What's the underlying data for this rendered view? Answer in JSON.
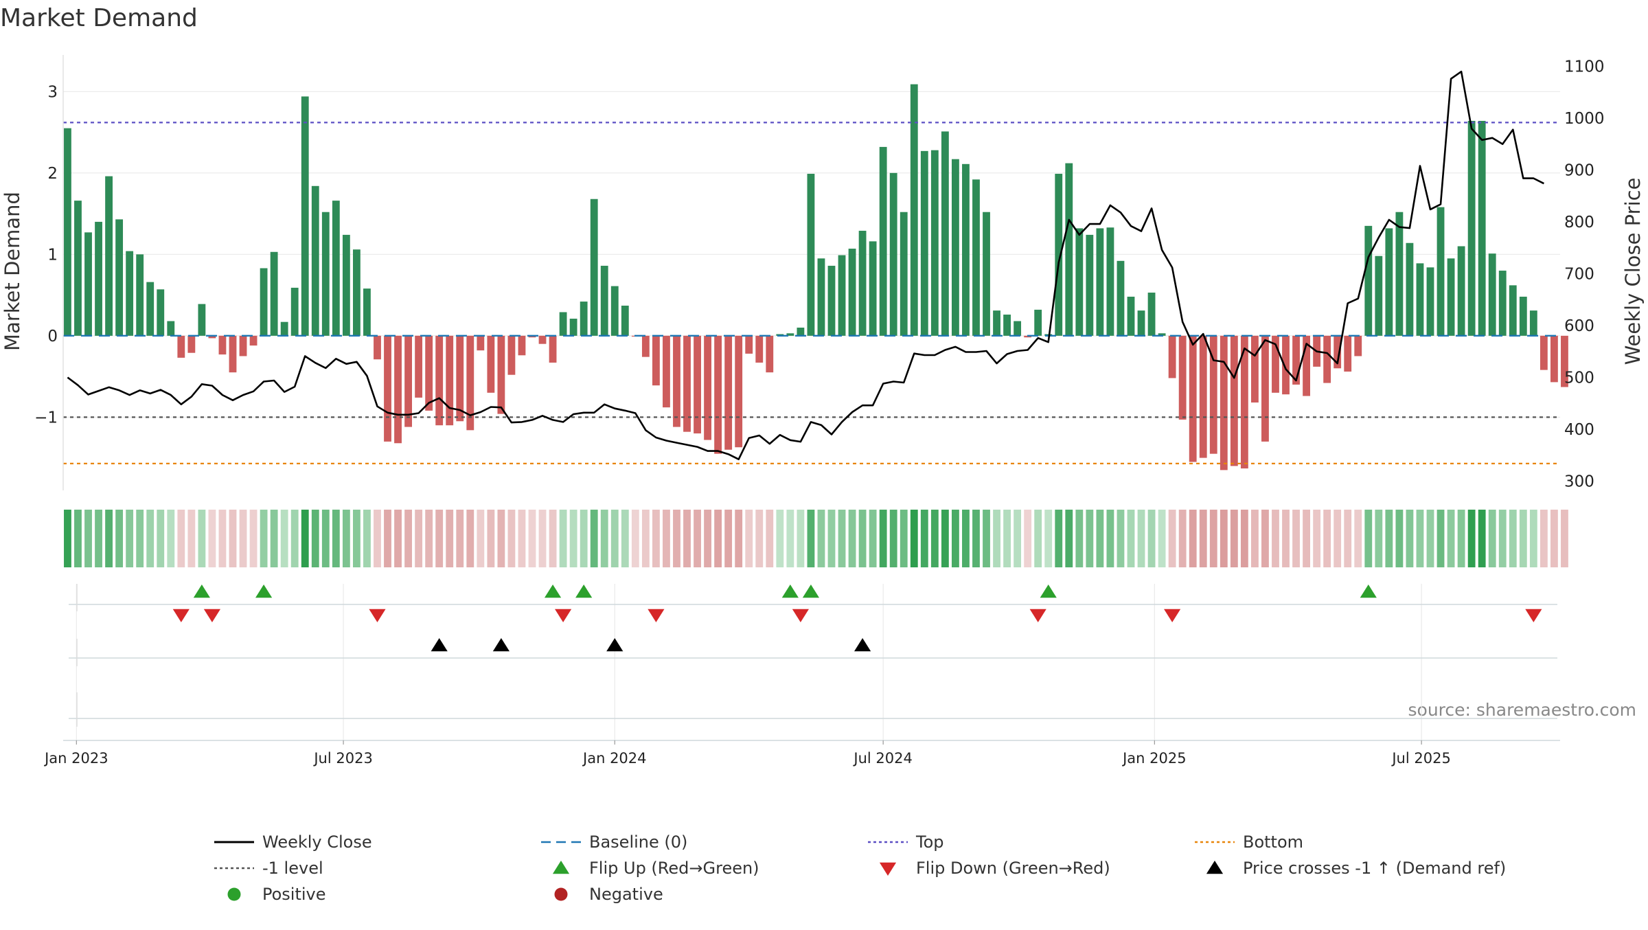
{
  "chart_data": {
    "type": "bar",
    "title": "Market Demand",
    "ylabel": "Market Demand",
    "y2label": "Weekly Close Price",
    "source": "source: sharemaestro.com",
    "ylim": [
      -1.9,
      3.45
    ],
    "y2lim": [
      282,
      1122
    ],
    "yticks": [
      -1,
      0,
      1,
      2,
      3
    ],
    "ytick_labels": [
      "−1",
      "0",
      "1",
      "2",
      "3"
    ],
    "y2ticks": [
      300,
      400,
      500,
      600,
      700,
      800,
      900,
      1000,
      1100
    ],
    "x_start": "2022-12-26",
    "x_step_days": 7,
    "xlim": [
      "2022-12-23",
      "2025-10-03"
    ],
    "xtick_dates": [
      "2023-01-01",
      "2023-07-01",
      "2024-01-01",
      "2024-07-01",
      "2025-01-01",
      "2025-07-01"
    ],
    "xtick_labels": [
      "Jan 2023",
      "Jul 2023",
      "Jan 2024",
      "Jul 2024",
      "Jan 2025",
      "Jul 2025"
    ],
    "grid": true,
    "series": [
      {
        "name": "Market Demand",
        "values": [
          2.55,
          1.66,
          1.27,
          1.4,
          1.96,
          1.43,
          1.04,
          1.0,
          0.66,
          0.57,
          0.18,
          -0.27,
          -0.21,
          0.39,
          -0.03,
          -0.23,
          -0.45,
          -0.25,
          -0.12,
          0.83,
          1.03,
          0.17,
          0.59,
          2.94,
          1.84,
          1.52,
          1.66,
          1.24,
          1.06,
          0.58,
          -0.29,
          -1.3,
          -1.32,
          -1.12,
          -0.76,
          -0.92,
          -1.1,
          -1.1,
          -1.05,
          -1.16,
          -0.18,
          -0.7,
          -0.96,
          -0.48,
          -0.24,
          -0.02,
          -0.1,
          -0.33,
          0.29,
          0.21,
          0.42,
          1.68,
          0.86,
          0.61,
          0.37,
          -0.01,
          -0.26,
          -0.61,
          -0.88,
          -1.12,
          -1.18,
          -1.2,
          -1.28,
          -1.45,
          -1.4,
          -1.37,
          -0.22,
          -0.33,
          -0.45,
          0.02,
          0.03,
          0.1,
          1.99,
          0.95,
          0.86,
          0.99,
          1.07,
          1.29,
          1.16,
          2.32,
          2.0,
          1.52,
          3.09,
          2.27,
          2.28,
          2.51,
          2.17,
          2.11,
          1.92,
          1.52,
          0.31,
          0.26,
          0.18,
          -0.02,
          0.32,
          0.02,
          1.99,
          2.12,
          1.32,
          1.24,
          1.32,
          1.33,
          0.92,
          0.48,
          0.31,
          0.53,
          0.03,
          -0.52,
          -1.03,
          -1.55,
          -1.5,
          -1.45,
          -1.65,
          -1.6,
          -1.63,
          -0.82,
          -1.3,
          -0.7,
          -0.72,
          -0.6,
          -0.74,
          -0.38,
          -0.58,
          -0.4,
          -0.44,
          -0.25,
          1.35,
          0.98,
          1.32,
          1.52,
          1.14,
          0.89,
          0.84,
          1.58,
          0.95,
          1.1,
          2.64,
          2.64,
          1.01,
          0.8,
          0.62,
          0.48,
          0.31,
          -0.42,
          -0.57,
          -0.63
        ]
      },
      {
        "name": "Weekly Close",
        "values": [
          500,
          485,
          467,
          474,
          481,
          475,
          466,
          475,
          469,
          476,
          466,
          448,
          463,
          487,
          484,
          466,
          456,
          466,
          473,
          492,
          494,
          472,
          482,
          541,
          528,
          518,
          536,
          526,
          530,
          503,
          444,
          432,
          428,
          428,
          431,
          451,
          460,
          441,
          437,
          427,
          433,
          443,
          442,
          413,
          414,
          418,
          426,
          418,
          414,
          429,
          432,
          432,
          448,
          440,
          436,
          431,
          398,
          384,
          378,
          374,
          370,
          366,
          358,
          358,
          352,
          342,
          383,
          388,
          372,
          389,
          379,
          376,
          414,
          408,
          390,
          414,
          433,
          446,
          446,
          488,
          492,
          490,
          546,
          543,
          543,
          553,
          559,
          549,
          549,
          551,
          527,
          545,
          551,
          553,
          576,
          568,
          722,
          804,
          775,
          796,
          796,
          832,
          818,
          792,
          782,
          826,
          746,
          712,
          607,
          563,
          584,
          533,
          530,
          499,
          556,
          542,
          572,
          564,
          516,
          494,
          565,
          550,
          547,
          527,
          643,
          652,
          732,
          770,
          804,
          790,
          788,
          908,
          824,
          834,
          1076,
          1090,
          980,
          958,
          962,
          950,
          978,
          884,
          884,
          874
        ]
      }
    ],
    "reference_lines": [
      {
        "name": "Baseline (0)",
        "y": 0,
        "color": "#1f77b4",
        "style": "dashed"
      },
      {
        "name": "Top",
        "y": 2.62,
        "color": "#5b4fc4",
        "style": "dotted"
      },
      {
        "name": "Bottom",
        "y": -1.57,
        "color": "#e8850a",
        "style": "dotted"
      },
      {
        "name": "-1 level",
        "y": -1,
        "color": "#555555",
        "style": "dotted"
      }
    ],
    "events": {
      "flip_up_weeks": [
        13,
        19,
        47,
        50,
        70,
        72,
        95,
        126
      ],
      "flip_down_weeks": [
        11,
        14,
        30,
        48,
        57,
        71,
        94,
        107,
        142
      ],
      "price_cross_weeks": [
        36,
        42,
        53,
        77
      ]
    },
    "colors": {
      "positive_bar": "#2e8b57",
      "negative_bar": "#cd5c5c",
      "price_line": "#000000",
      "flip_up": "#2ca02c",
      "flip_down": "#d62728",
      "price_cross": "#000000",
      "positive_dot": "#2ca02c",
      "negative_dot": "#b22222",
      "grid": "#eaeaea"
    },
    "legend": [
      {
        "label": "Weekly Close",
        "kind": "line",
        "color": "#000000",
        "dash": ""
      },
      {
        "label": "Baseline (0)",
        "kind": "line",
        "color": "#1f77b4",
        "dash": "14,8"
      },
      {
        "label": "Top",
        "kind": "line",
        "color": "#5b4fc4",
        "dash": "4,4"
      },
      {
        "label": "Bottom",
        "kind": "line",
        "color": "#e8850a",
        "dash": "4,4"
      },
      {
        "label": "-1 level",
        "kind": "line",
        "color": "#555555",
        "dash": "4,4"
      },
      {
        "label": "Flip Up (Red→Green)",
        "kind": "tri-up",
        "color": "#2ca02c"
      },
      {
        "label": "Flip Down (Green→Red)",
        "kind": "tri-down",
        "color": "#d62728"
      },
      {
        "label": "Price crosses -1 ↑ (Demand ref)",
        "kind": "tri-up",
        "color": "#000000"
      },
      {
        "label": "Positive",
        "kind": "dot",
        "color": "#2ca02c"
      },
      {
        "label": "Negative",
        "kind": "dot",
        "color": "#b22222"
      }
    ],
    "legend_position": "bottom"
  }
}
